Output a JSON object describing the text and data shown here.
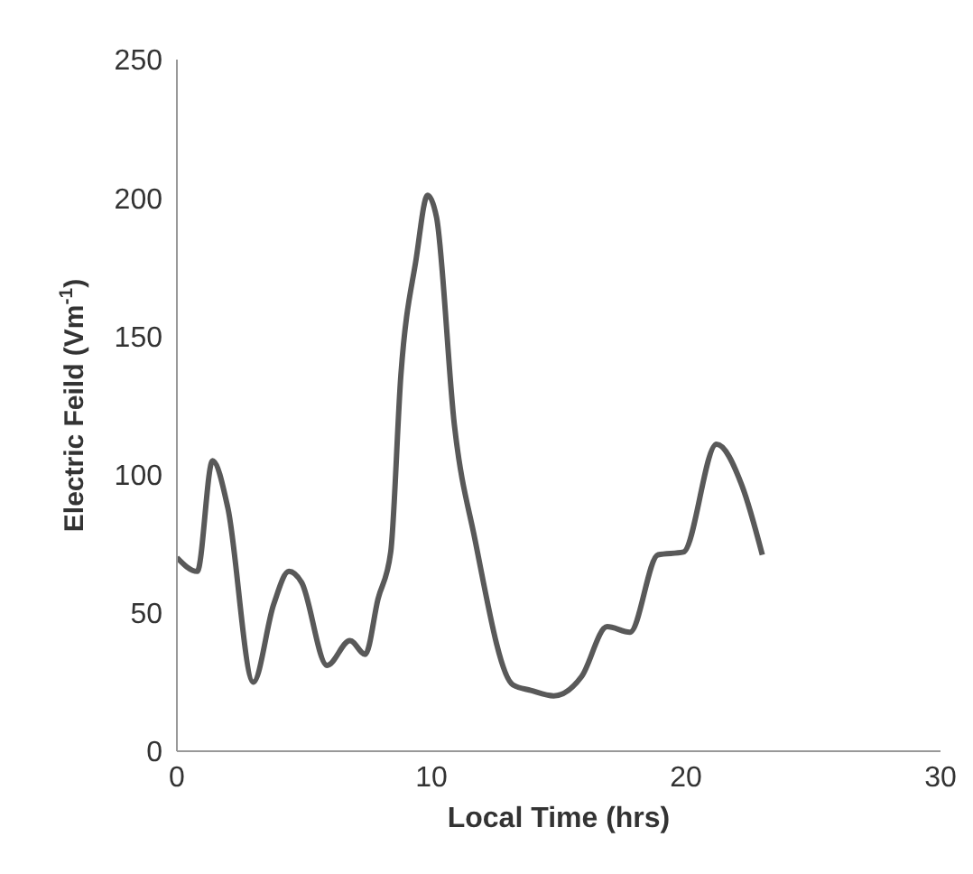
{
  "chart_data": {
    "type": "line",
    "xlabel": "Local Time (hrs)",
    "ylabel": "Electric Feild (Vm$^{-1}$)",
    "x": [
      0,
      0.8,
      1.4,
      2,
      3,
      3.8,
      4.4,
      4.9,
      5.9,
      6.8,
      7.4,
      7.9,
      8.4,
      8.8,
      9.4,
      9.85,
      10.2,
      10.9,
      11.7,
      13.2,
      13.9,
      14.8,
      15.9,
      16.9,
      17.8,
      18.9,
      19.9,
      21.2,
      22.2,
      23
    ],
    "series": [
      {
        "color": "#595959",
        "values": [
          70,
          65,
          105,
          88,
          25,
          53,
          65,
          61,
          31,
          40,
          35,
          55,
          72,
          136,
          178,
          201,
          193,
          118,
          77,
          24,
          22,
          20,
          27,
          45,
          43,
          71,
          72,
          111,
          96,
          71
        ]
      }
    ],
    "xlim": [
      0,
      30
    ],
    "xticks": [
      0,
      10,
      20,
      30
    ],
    "ylim": [
      0,
      250
    ],
    "yticks": [
      0,
      50,
      100,
      150,
      200,
      250
    ],
    "grid": false,
    "legend": false,
    "marker": "none",
    "line_style": "solid"
  }
}
